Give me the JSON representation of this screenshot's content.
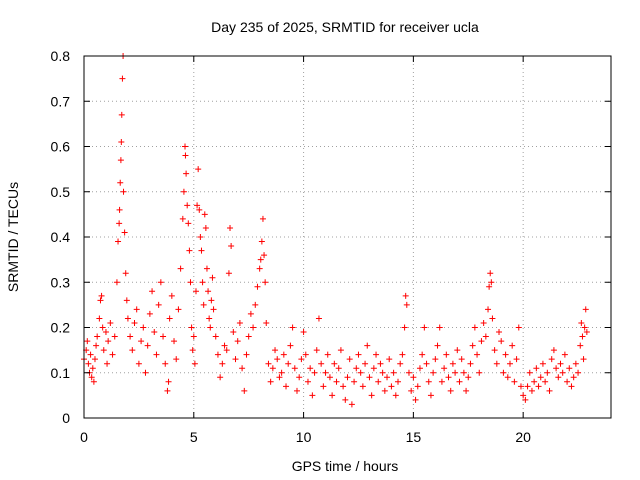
{
  "chart_data": {
    "type": "scatter",
    "title": "Day 235 of 2025, SRMTID for receiver ucla",
    "xlabel": "GPS time / hours",
    "ylabel": "SRMTID / TECUs",
    "xlim": [
      0,
      24
    ],
    "ylim": [
      0,
      0.8
    ],
    "xticks": [
      0,
      5,
      10,
      15,
      20
    ],
    "xtick_labels": [
      "0",
      "5",
      "10",
      "15",
      "20"
    ],
    "yticks": [
      0,
      0.1,
      0.2,
      0.3,
      0.4,
      0.5,
      0.6,
      0.7,
      0.8
    ],
    "ytick_labels": [
      "0",
      "0.1",
      "0.2",
      "0.3",
      "0.4",
      "0.5",
      "0.6",
      "0.7",
      "0.8"
    ],
    "grid": true,
    "marker": "+",
    "color": "#ff0000",
    "series": [
      {
        "name": "SRMTID",
        "points": [
          [
            0.0,
            0.13
          ],
          [
            0.1,
            0.15
          ],
          [
            0.15,
            0.17
          ],
          [
            0.2,
            0.12
          ],
          [
            0.25,
            0.1
          ],
          [
            0.3,
            0.14
          ],
          [
            0.35,
            0.09
          ],
          [
            0.4,
            0.11
          ],
          [
            0.45,
            0.08
          ],
          [
            0.5,
            0.13
          ],
          [
            0.55,
            0.16
          ],
          [
            0.6,
            0.18
          ],
          [
            0.7,
            0.22
          ],
          [
            0.75,
            0.26
          ],
          [
            0.8,
            0.27
          ],
          [
            0.85,
            0.2
          ],
          [
            0.9,
            0.15
          ],
          [
            1.0,
            0.19
          ],
          [
            1.05,
            0.12
          ],
          [
            1.1,
            0.17
          ],
          [
            1.2,
            0.21
          ],
          [
            1.3,
            0.14
          ],
          [
            1.4,
            0.18
          ],
          [
            1.5,
            0.3
          ],
          [
            1.55,
            0.39
          ],
          [
            1.6,
            0.43
          ],
          [
            1.62,
            0.46
          ],
          [
            1.65,
            0.52
          ],
          [
            1.68,
            0.57
          ],
          [
            1.7,
            0.61
          ],
          [
            1.72,
            0.67
          ],
          [
            1.75,
            0.75
          ],
          [
            1.78,
            0.8
          ],
          [
            1.8,
            0.5
          ],
          [
            1.85,
            0.41
          ],
          [
            1.9,
            0.32
          ],
          [
            1.95,
            0.26
          ],
          [
            2.0,
            0.22
          ],
          [
            2.1,
            0.18
          ],
          [
            2.2,
            0.15
          ],
          [
            2.3,
            0.21
          ],
          [
            2.4,
            0.24
          ],
          [
            2.5,
            0.12
          ],
          [
            2.6,
            0.17
          ],
          [
            2.7,
            0.2
          ],
          [
            2.8,
            0.1
          ],
          [
            2.9,
            0.16
          ],
          [
            3.0,
            0.23
          ],
          [
            3.1,
            0.28
          ],
          [
            3.2,
            0.19
          ],
          [
            3.3,
            0.14
          ],
          [
            3.4,
            0.25
          ],
          [
            3.5,
            0.3
          ],
          [
            3.6,
            0.18
          ],
          [
            3.7,
            0.12
          ],
          [
            3.8,
            0.06
          ],
          [
            3.85,
            0.08
          ],
          [
            3.9,
            0.22
          ],
          [
            4.0,
            0.27
          ],
          [
            4.1,
            0.17
          ],
          [
            4.2,
            0.13
          ],
          [
            4.3,
            0.24
          ],
          [
            4.4,
            0.33
          ],
          [
            4.5,
            0.44
          ],
          [
            4.55,
            0.5
          ],
          [
            4.6,
            0.6
          ],
          [
            4.62,
            0.58
          ],
          [
            4.65,
            0.54
          ],
          [
            4.7,
            0.47
          ],
          [
            4.75,
            0.43
          ],
          [
            4.8,
            0.37
          ],
          [
            4.85,
            0.3
          ],
          [
            4.9,
            0.2
          ],
          [
            4.95,
            0.15
          ],
          [
            5.0,
            0.18
          ],
          [
            5.05,
            0.12
          ],
          [
            5.1,
            0.28
          ],
          [
            5.15,
            0.47
          ],
          [
            5.2,
            0.55
          ],
          [
            5.25,
            0.46
          ],
          [
            5.3,
            0.4
          ],
          [
            5.35,
            0.37
          ],
          [
            5.4,
            0.3
          ],
          [
            5.45,
            0.25
          ],
          [
            5.5,
            0.45
          ],
          [
            5.55,
            0.42
          ],
          [
            5.6,
            0.33
          ],
          [
            5.65,
            0.28
          ],
          [
            5.7,
            0.22
          ],
          [
            5.75,
            0.2
          ],
          [
            5.8,
            0.26
          ],
          [
            5.85,
            0.31
          ],
          [
            5.9,
            0.24
          ],
          [
            6.0,
            0.18
          ],
          [
            6.1,
            0.14
          ],
          [
            6.2,
            0.09
          ],
          [
            6.3,
            0.12
          ],
          [
            6.4,
            0.16
          ],
          [
            6.5,
            0.15
          ],
          [
            6.6,
            0.32
          ],
          [
            6.65,
            0.42
          ],
          [
            6.7,
            0.38
          ],
          [
            6.8,
            0.19
          ],
          [
            6.9,
            0.13
          ],
          [
            7.0,
            0.17
          ],
          [
            7.1,
            0.21
          ],
          [
            7.2,
            0.11
          ],
          [
            7.3,
            0.06
          ],
          [
            7.4,
            0.14
          ],
          [
            7.5,
            0.18
          ],
          [
            7.6,
            0.23
          ],
          [
            7.7,
            0.2
          ],
          [
            7.8,
            0.25
          ],
          [
            7.9,
            0.29
          ],
          [
            8.0,
            0.33
          ],
          [
            8.05,
            0.35
          ],
          [
            8.1,
            0.39
          ],
          [
            8.15,
            0.44
          ],
          [
            8.2,
            0.36
          ],
          [
            8.25,
            0.3
          ],
          [
            8.3,
            0.21
          ],
          [
            8.4,
            0.12
          ],
          [
            8.5,
            0.08
          ],
          [
            8.6,
            0.11
          ],
          [
            8.7,
            0.15
          ],
          [
            8.8,
            0.13
          ],
          [
            8.9,
            0.09
          ],
          [
            9.0,
            0.1
          ],
          [
            9.1,
            0.14
          ],
          [
            9.2,
            0.07
          ],
          [
            9.3,
            0.12
          ],
          [
            9.4,
            0.16
          ],
          [
            9.5,
            0.2
          ],
          [
            9.6,
            0.11
          ],
          [
            9.7,
            0.06
          ],
          [
            9.8,
            0.09
          ],
          [
            9.9,
            0.13
          ],
          [
            10.0,
            0.19
          ],
          [
            10.1,
            0.14
          ],
          [
            10.2,
            0.08
          ],
          [
            10.3,
            0.11
          ],
          [
            10.4,
            0.05
          ],
          [
            10.5,
            0.1
          ],
          [
            10.6,
            0.15
          ],
          [
            10.7,
            0.22
          ],
          [
            10.8,
            0.12
          ],
          [
            10.9,
            0.07
          ],
          [
            11.0,
            0.1
          ],
          [
            11.1,
            0.14
          ],
          [
            11.2,
            0.09
          ],
          [
            11.3,
            0.05
          ],
          [
            11.4,
            0.12
          ],
          [
            11.5,
            0.08
          ],
          [
            11.6,
            0.11
          ],
          [
            11.7,
            0.15
          ],
          [
            11.8,
            0.07
          ],
          [
            11.9,
            0.04
          ],
          [
            12.0,
            0.09
          ],
          [
            12.1,
            0.13
          ],
          [
            12.2,
            0.03
          ],
          [
            12.3,
            0.08
          ],
          [
            12.4,
            0.11
          ],
          [
            12.5,
            0.14
          ],
          [
            12.6,
            0.1
          ],
          [
            12.7,
            0.07
          ],
          [
            12.8,
            0.12
          ],
          [
            12.9,
            0.16
          ],
          [
            13.0,
            0.09
          ],
          [
            13.1,
            0.05
          ],
          [
            13.2,
            0.11
          ],
          [
            13.3,
            0.14
          ],
          [
            13.4,
            0.08
          ],
          [
            13.5,
            0.12
          ],
          [
            13.6,
            0.1
          ],
          [
            13.7,
            0.06
          ],
          [
            13.8,
            0.09
          ],
          [
            13.9,
            0.13
          ],
          [
            14.0,
            0.07
          ],
          [
            14.1,
            0.1
          ],
          [
            14.2,
            0.05
          ],
          [
            14.3,
            0.08
          ],
          [
            14.4,
            0.12
          ],
          [
            14.5,
            0.14
          ],
          [
            14.6,
            0.2
          ],
          [
            14.65,
            0.27
          ],
          [
            14.7,
            0.25
          ],
          [
            14.8,
            0.1
          ],
          [
            14.9,
            0.06
          ],
          [
            15.0,
            0.09
          ],
          [
            15.1,
            0.04
          ],
          [
            15.2,
            0.07
          ],
          [
            15.3,
            0.11
          ],
          [
            15.4,
            0.14
          ],
          [
            15.5,
            0.2
          ],
          [
            15.6,
            0.12
          ],
          [
            15.7,
            0.08
          ],
          [
            15.8,
            0.05
          ],
          [
            15.9,
            0.1
          ],
          [
            16.0,
            0.13
          ],
          [
            16.1,
            0.16
          ],
          [
            16.2,
            0.2
          ],
          [
            16.3,
            0.08
          ],
          [
            16.4,
            0.11
          ],
          [
            16.5,
            0.14
          ],
          [
            16.6,
            0.09
          ],
          [
            16.7,
            0.06
          ],
          [
            16.8,
            0.12
          ],
          [
            16.9,
            0.1
          ],
          [
            17.0,
            0.15
          ],
          [
            17.1,
            0.08
          ],
          [
            17.2,
            0.13
          ],
          [
            17.3,
            0.1
          ],
          [
            17.4,
            0.06
          ],
          [
            17.5,
            0.09
          ],
          [
            17.6,
            0.12
          ],
          [
            17.7,
            0.16
          ],
          [
            17.8,
            0.2
          ],
          [
            17.9,
            0.14
          ],
          [
            18.0,
            0.1
          ],
          [
            18.1,
            0.17
          ],
          [
            18.2,
            0.21
          ],
          [
            18.3,
            0.18
          ],
          [
            18.4,
            0.24
          ],
          [
            18.45,
            0.29
          ],
          [
            18.5,
            0.32
          ],
          [
            18.55,
            0.3
          ],
          [
            18.6,
            0.22
          ],
          [
            18.7,
            0.15
          ],
          [
            18.8,
            0.12
          ],
          [
            18.9,
            0.19
          ],
          [
            19.0,
            0.17
          ],
          [
            19.1,
            0.1
          ],
          [
            19.2,
            0.14
          ],
          [
            19.3,
            0.09
          ],
          [
            19.4,
            0.12
          ],
          [
            19.5,
            0.16
          ],
          [
            19.6,
            0.08
          ],
          [
            19.7,
            0.13
          ],
          [
            19.8,
            0.2
          ],
          [
            19.9,
            0.07
          ],
          [
            20.0,
            0.05
          ],
          [
            20.1,
            0.04
          ],
          [
            20.2,
            0.07
          ],
          [
            20.3,
            0.1
          ],
          [
            20.4,
            0.06
          ],
          [
            20.5,
            0.08
          ],
          [
            20.6,
            0.11
          ],
          [
            20.7,
            0.07
          ],
          [
            20.8,
            0.09
          ],
          [
            20.9,
            0.12
          ],
          [
            21.0,
            0.08
          ],
          [
            21.1,
            0.1
          ],
          [
            21.2,
            0.06
          ],
          [
            21.3,
            0.13
          ],
          [
            21.4,
            0.15
          ],
          [
            21.5,
            0.11
          ],
          [
            21.6,
            0.09
          ],
          [
            21.7,
            0.12
          ],
          [
            21.8,
            0.1
          ],
          [
            21.9,
            0.14
          ],
          [
            22.0,
            0.08
          ],
          [
            22.1,
            0.11
          ],
          [
            22.2,
            0.07
          ],
          [
            22.3,
            0.09
          ],
          [
            22.4,
            0.12
          ],
          [
            22.5,
            0.1
          ],
          [
            22.6,
            0.16
          ],
          [
            22.65,
            0.21
          ],
          [
            22.7,
            0.18
          ],
          [
            22.75,
            0.13
          ],
          [
            22.8,
            0.2
          ],
          [
            22.85,
            0.24
          ],
          [
            22.9,
            0.19
          ]
        ]
      }
    ]
  }
}
